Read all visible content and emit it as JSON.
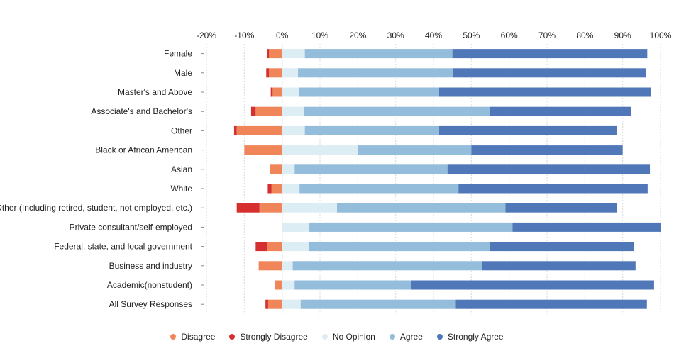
{
  "chart_data": {
    "type": "bar",
    "orientation": "horizontal",
    "stacked": "diverging",
    "title": "",
    "xlabel": "",
    "ylabel": "",
    "xlim": [
      -20,
      100
    ],
    "x_ticks": [
      "-20%",
      "-10%",
      "0%",
      "10%",
      "20%",
      "30%",
      "40%",
      "50%",
      "60%",
      "70%",
      "80%",
      "90%",
      "100%"
    ],
    "grid": true,
    "legend_position": "bottom",
    "categories": [
      "Female",
      "Male",
      "Master's and Above",
      "Associate's and Bachelor's",
      "Other",
      "Black or African American",
      "Asian",
      "White",
      "Other (Including retired, student, not employed, etc.)",
      "Private consultant/self-employed",
      "Federal, state, and local government",
      "Business and industry",
      "Academic(nonstudent)",
      "All Survey Responses"
    ],
    "series": [
      {
        "name": "Disagree",
        "color": "#f0855a",
        "side": "negative",
        "values": [
          3.5,
          3.5,
          2.5,
          7,
          12,
          10,
          3.3,
          2.8,
          6,
          0,
          4,
          6.2,
          1.9,
          3.7
        ]
      },
      {
        "name": "Strongly Disagree",
        "color": "#d62f2f",
        "side": "negative",
        "values": [
          0.5,
          0.7,
          0.5,
          1.2,
          0.7,
          0,
          0,
          1,
          6,
          0,
          3,
          0,
          0,
          0.7
        ]
      },
      {
        "name": "No Opinion",
        "color": "#ddedf4",
        "side": "positive",
        "values": [
          6,
          4.2,
          4.5,
          5.8,
          6,
          20,
          3.3,
          4.6,
          14.5,
          7.2,
          7,
          2.8,
          3.3,
          4.9
        ]
      },
      {
        "name": "Agree",
        "color": "#94bcdb",
        "side": "positive",
        "values": [
          39,
          41,
          37,
          49,
          35.5,
          30,
          40.4,
          42,
          44.5,
          53.7,
          48,
          50,
          30.7,
          41
        ]
      },
      {
        "name": "Strongly Agree",
        "color": "#5078b8",
        "side": "positive",
        "values": [
          51.5,
          51,
          56,
          37.4,
          47,
          40,
          53.5,
          50,
          29.5,
          39.1,
          38,
          40.6,
          64.3,
          50.5
        ]
      }
    ]
  }
}
